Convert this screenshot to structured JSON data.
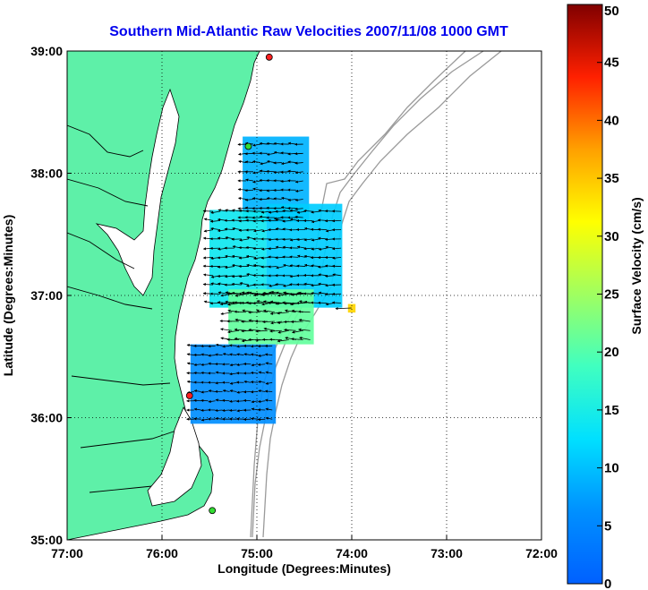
{
  "chart_data": {
    "type": "heatmap",
    "title": "Southern Mid-Atlantic Raw Velocities 2007/11/08 1000 GMT",
    "xlabel": "Longitude (Degrees:Minutes)",
    "ylabel": "Latitude (Degrees:Minutes)",
    "x_ticks": [
      "77:00",
      "76:00",
      "75:00",
      "74:00",
      "73:00",
      "72:00"
    ],
    "y_ticks": [
      "39:00",
      "38:00",
      "37:00",
      "36:00",
      "35:00"
    ],
    "xlim": [
      -77,
      -72
    ],
    "ylim": [
      35,
      39
    ],
    "grid": true,
    "colorbar": {
      "label": "Surface Velocity (cm/s)",
      "ticks": [
        "0",
        "5",
        "10",
        "15",
        "20",
        "25",
        "30",
        "35",
        "40",
        "45",
        "50"
      ],
      "range": [
        0,
        50
      ],
      "colormap": "jet"
    },
    "colors": {
      "land": "#5ef0a8",
      "water": "#ffffff",
      "title": "#0000ee",
      "bathymetry": "#9a9a9a",
      "vectors": "#000000"
    },
    "stations": [
      {
        "lon": -74.87,
        "lat": 38.95,
        "color": "#ff2020"
      },
      {
        "lon": -75.09,
        "lat": 38.22,
        "color": "#33dd33"
      },
      {
        "lon": -75.71,
        "lat": 36.18,
        "color": "#ff2020"
      },
      {
        "lon": -75.47,
        "lat": 35.24,
        "color": "#33dd33"
      }
    ],
    "velocity_regions": [
      {
        "name": "north",
        "lon": [
          -75.15,
          -74.45
        ],
        "lat": [
          37.6,
          38.3
        ],
        "speed_cm_s": 9
      },
      {
        "name": "central-west",
        "lon": [
          -75.5,
          -74.9
        ],
        "lat": [
          36.9,
          37.7
        ],
        "speed_cm_s": 14
      },
      {
        "name": "central-east",
        "lon": [
          -74.9,
          -74.1
        ],
        "lat": [
          36.9,
          37.75
        ],
        "speed_cm_s": 11
      },
      {
        "name": "frontal-band",
        "lon": [
          -75.3,
          -74.4
        ],
        "lat": [
          36.6,
          37.05
        ],
        "speed_cm_s": 21
      },
      {
        "name": "south",
        "lon": [
          -75.7,
          -74.8
        ],
        "lat": [
          35.95,
          36.6
        ],
        "speed_cm_s": 6
      },
      {
        "name": "offshore-cell",
        "lon": [
          -74.04,
          -73.96
        ],
        "lat": [
          36.86,
          36.93
        ],
        "speed_cm_s": 34
      }
    ]
  }
}
